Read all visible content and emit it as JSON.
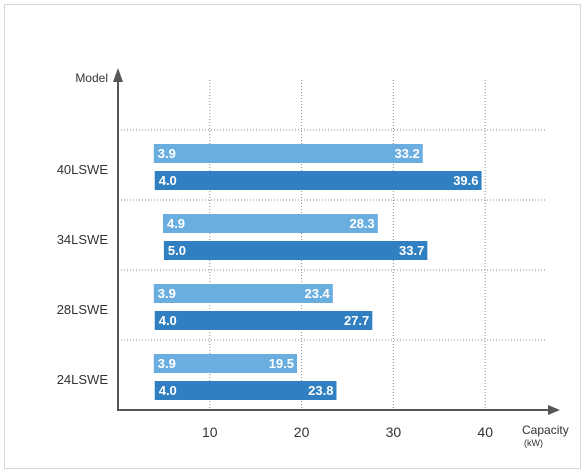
{
  "chart_data": {
    "type": "bar",
    "orientation": "horizontal",
    "title": "",
    "ylabel": "Model",
    "xlabel": "Capacity",
    "xlabel_unit": "(kW)",
    "categories": [
      "40LSWE",
      "34LSWE",
      "28LSWE",
      "24LSWE"
    ],
    "xlim": [
      0,
      45
    ],
    "xticks": [
      10,
      20,
      30,
      40
    ],
    "grid": "dotted",
    "legend": "none",
    "series": [
      {
        "color": "#6aaee0",
        "start_labels": [
          "3.9",
          "4.9",
          "3.9",
          "3.9"
        ],
        "end_labels": [
          "33.2",
          "28.3",
          "23.4",
          "19.5"
        ],
        "start": [
          3.9,
          4.9,
          3.9,
          3.9
        ],
        "end": [
          33.2,
          28.3,
          23.4,
          19.5
        ]
      },
      {
        "color": "#2f7fc1",
        "start_labels": [
          "4.0",
          "5.0",
          "4.0",
          "4.0"
        ],
        "end_labels": [
          "39.6",
          "33.7",
          "27.7",
          "23.8"
        ],
        "start": [
          4.0,
          5.0,
          4.0,
          4.0
        ],
        "end": [
          39.6,
          33.7,
          27.7,
          23.8
        ]
      }
    ]
  }
}
